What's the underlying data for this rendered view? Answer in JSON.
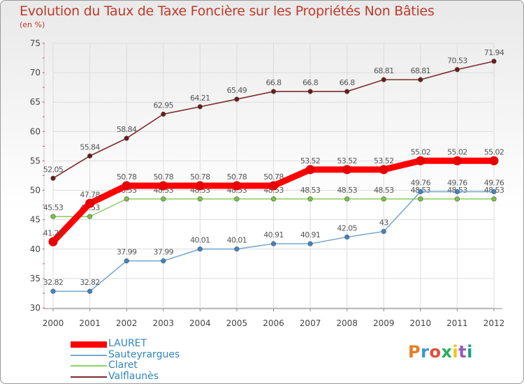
{
  "title": "Evolution du Taux de Taxe Foncière sur les Propriétés Non Bâties",
  "unit_label": "(en %)",
  "logo": {
    "text": "Proxiti",
    "colors": [
      "#e67e22",
      "#3498db",
      "#e74c3c",
      "#27ae60",
      "#f1c40f",
      "#9b59b6",
      "#16a085"
    ]
  },
  "chart_data": {
    "type": "line",
    "title": "Evolution du Taux de Taxe Foncière sur les Propriétés Non Bâties",
    "ylabel": "(en %)",
    "xlabel": "",
    "x": [
      "2000",
      "2001",
      "2002",
      "2003",
      "2004",
      "2005",
      "2006",
      "2007",
      "2008",
      "2009",
      "2010",
      "2011",
      "2012"
    ],
    "ylim": [
      30,
      75
    ],
    "yticks": [
      "30",
      "35",
      "40",
      "45",
      "50",
      "55",
      "60",
      "65",
      "70",
      "75"
    ],
    "grid": true,
    "legend_position": "bottom-left",
    "series": [
      {
        "name": "Valflaunès",
        "color": "#7b2a2a",
        "marker_color": "#6b1b1b",
        "values": [
          52.05,
          55.84,
          58.84,
          62.95,
          64.21,
          65.49,
          66.8,
          66.8,
          66.8,
          68.81,
          68.81,
          70.53,
          71.94
        ],
        "labels": [
          "52.05",
          "55.84",
          "58.84",
          "62.95",
          "64.21",
          "65.49",
          "66.8",
          "66.8",
          "66.8",
          "68.81",
          "68.81",
          "70.53",
          "71.94"
        ]
      },
      {
        "name": "Claret",
        "color": "#8fd16a",
        "marker_color": "#7dc142",
        "values": [
          45.53,
          45.53,
          48.53,
          48.53,
          48.53,
          48.53,
          48.53,
          48.53,
          48.53,
          48.53,
          48.53,
          48.53,
          48.53
        ],
        "labels": [
          "45.53",
          "45.53",
          "48.53",
          "48.53",
          "48.53",
          "48.53",
          "48.53",
          "48.53",
          "48.53",
          "48.53",
          "48.53",
          "48.53",
          "48.53"
        ]
      },
      {
        "name": "Sauteyrargues",
        "color": "#7aa9cf",
        "marker_color": "#3d85c6",
        "values": [
          32.82,
          32.82,
          37.99,
          37.99,
          40.01,
          40.01,
          40.91,
          40.91,
          42.05,
          43,
          49.76,
          49.76,
          49.76
        ],
        "labels": [
          "32.82",
          "32.82",
          "37.99",
          "37.99",
          "40.01",
          "40.01",
          "40.91",
          "40.91",
          "42.05",
          "43",
          "49.76",
          "49.76",
          "49.76"
        ]
      },
      {
        "name": "LAURET",
        "color": "#ff0000",
        "marker_color": "#e60000",
        "values": [
          41.25,
          47.78,
          50.78,
          50.78,
          50.78,
          50.78,
          50.78,
          53.52,
          53.52,
          53.52,
          55.02,
          55.02,
          55.02
        ],
        "labels": [
          "41.25",
          "47.78",
          "50.78",
          "50.78",
          "50.78",
          "50.78",
          "50.78",
          "53.52",
          "53.52",
          "53.52",
          "55.02",
          "55.02",
          "55.02"
        ]
      }
    ],
    "legend_order": [
      "LAURET",
      "Sauteyrargues",
      "Claret",
      "Valflaunès"
    ]
  }
}
